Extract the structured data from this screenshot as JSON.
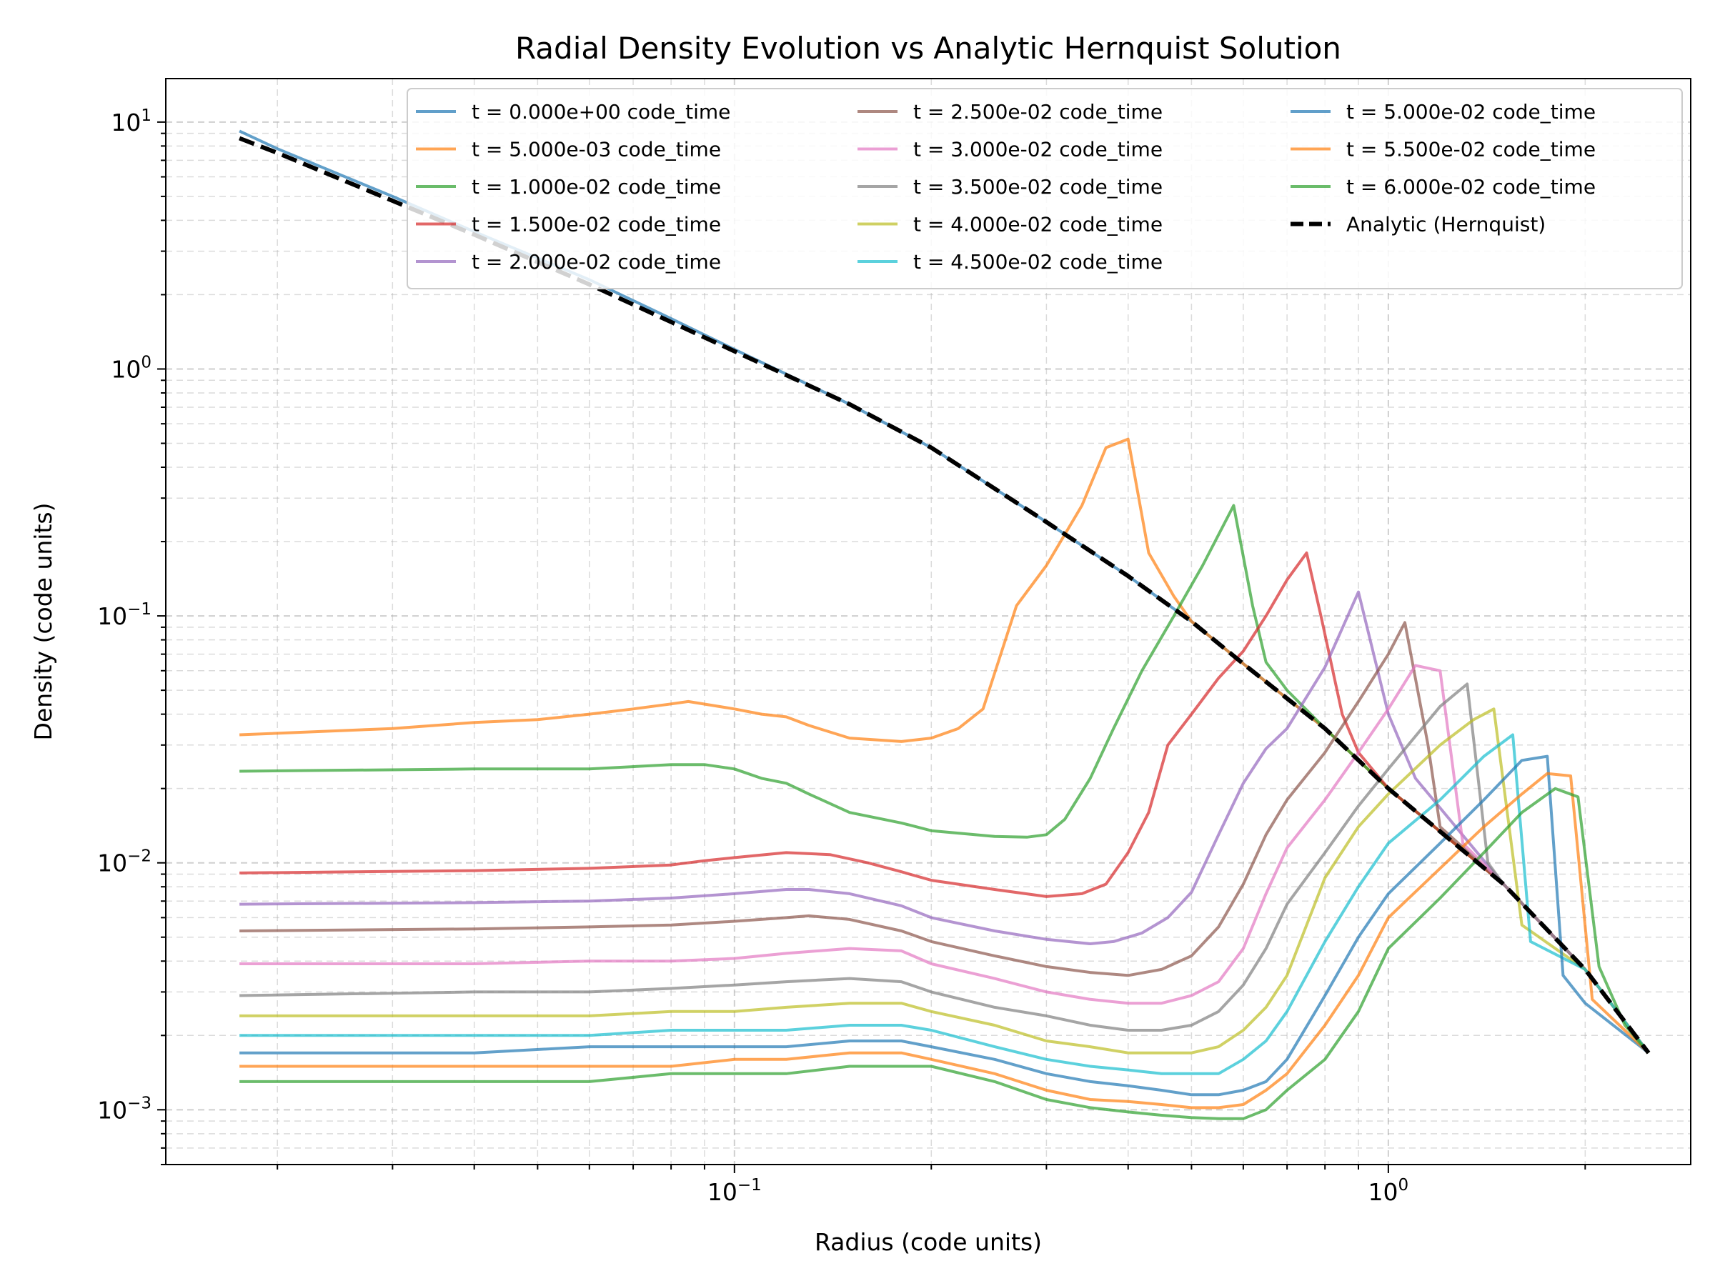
{
  "chart_data": {
    "type": "line",
    "title": "Radial Density Evolution vs Analytic Hernquist Solution",
    "xlabel": "Radius (code units)",
    "ylabel": "Density (code units)",
    "xscale": "log",
    "yscale": "log",
    "xlim": [
      0.0135,
      2.9
    ],
    "ylim": [
      0.0006,
      15
    ],
    "grid": "on (major and minor, dashed)",
    "legend_placement": "top-right",
    "legend_columns": 3,
    "x_ticks": [
      {
        "value": 0.1,
        "base": "10",
        "exp": "−1"
      },
      {
        "value": 1,
        "base": "10",
        "exp": "0"
      }
    ],
    "y_ticks": [
      {
        "value": 0.001,
        "base": "10",
        "exp": "−3"
      },
      {
        "value": 0.01,
        "base": "10",
        "exp": "−2"
      },
      {
        "value": 0.1,
        "base": "10",
        "exp": "−1"
      },
      {
        "value": 1,
        "base": "10",
        "exp": "0"
      },
      {
        "value": 10,
        "base": "10",
        "exp": "1"
      }
    ],
    "series": [
      {
        "name": "t = 0.000e+00 code_time",
        "color": "#1f77b4",
        "x": [
          0.0175,
          0.02,
          0.03,
          0.04,
          0.06,
          0.08,
          0.1,
          0.15,
          0.2,
          0.3,
          0.4,
          0.5,
          0.6,
          0.8,
          1.0,
          1.5,
          2.0,
          2.5
        ],
        "y": [
          9.2,
          7.8,
          5.0,
          3.6,
          2.3,
          1.6,
          1.2,
          0.72,
          0.48,
          0.24,
          0.145,
          0.095,
          0.064,
          0.035,
          0.02,
          0.0082,
          0.0037,
          0.0017
        ]
      },
      {
        "name": "t = 5.000e-03 code_time",
        "color": "#ff7f0e",
        "x": [
          0.0175,
          0.03,
          0.04,
          0.05,
          0.06,
          0.07,
          0.08,
          0.085,
          0.1,
          0.11,
          0.12,
          0.13,
          0.15,
          0.18,
          0.2,
          0.22,
          0.24,
          0.27,
          0.3,
          0.34,
          0.37,
          0.4,
          0.43,
          0.47,
          0.5,
          0.6,
          0.8,
          1.0,
          1.5,
          2.0,
          2.5
        ],
        "y": [
          0.033,
          0.035,
          0.037,
          0.038,
          0.04,
          0.042,
          0.044,
          0.045,
          0.042,
          0.04,
          0.039,
          0.036,
          0.032,
          0.031,
          0.032,
          0.035,
          0.042,
          0.11,
          0.16,
          0.28,
          0.48,
          0.52,
          0.18,
          0.12,
          0.095,
          0.064,
          0.035,
          0.02,
          0.0082,
          0.0037,
          0.0017
        ]
      },
      {
        "name": "t = 1.000e-02 code_time",
        "color": "#2ca02c",
        "x": [
          0.0175,
          0.04,
          0.06,
          0.08,
          0.09,
          0.1,
          0.11,
          0.12,
          0.13,
          0.15,
          0.18,
          0.2,
          0.25,
          0.28,
          0.3,
          0.32,
          0.35,
          0.38,
          0.42,
          0.47,
          0.52,
          0.58,
          0.62,
          0.65,
          0.7,
          0.8,
          1.0,
          1.5,
          2.0,
          2.5
        ],
        "y": [
          0.0235,
          0.024,
          0.024,
          0.025,
          0.025,
          0.024,
          0.022,
          0.021,
          0.019,
          0.016,
          0.0145,
          0.0135,
          0.0128,
          0.0127,
          0.013,
          0.015,
          0.022,
          0.035,
          0.06,
          0.1,
          0.16,
          0.28,
          0.11,
          0.065,
          0.05,
          0.035,
          0.02,
          0.0082,
          0.0037,
          0.0017
        ]
      },
      {
        "name": "t = 1.500e-02 code_time",
        "color": "#d62728",
        "x": [
          0.0175,
          0.04,
          0.06,
          0.08,
          0.09,
          0.1,
          0.12,
          0.14,
          0.16,
          0.18,
          0.2,
          0.25,
          0.3,
          0.34,
          0.37,
          0.4,
          0.43,
          0.46,
          0.5,
          0.55,
          0.6,
          0.65,
          0.7,
          0.75,
          0.79,
          0.85,
          0.9,
          1.0,
          1.5,
          2.0,
          2.5
        ],
        "y": [
          0.0091,
          0.0093,
          0.0095,
          0.0098,
          0.0102,
          0.0105,
          0.011,
          0.0108,
          0.01,
          0.0092,
          0.0085,
          0.0078,
          0.0073,
          0.0075,
          0.0082,
          0.011,
          0.016,
          0.03,
          0.04,
          0.056,
          0.072,
          0.1,
          0.14,
          0.18,
          0.098,
          0.04,
          0.028,
          0.02,
          0.0082,
          0.0037,
          0.0017
        ]
      },
      {
        "name": "t = 2.000e-02 code_time",
        "color": "#9467bd",
        "x": [
          0.0175,
          0.04,
          0.06,
          0.08,
          0.1,
          0.12,
          0.13,
          0.15,
          0.18,
          0.2,
          0.25,
          0.3,
          0.35,
          0.38,
          0.42,
          0.46,
          0.5,
          0.55,
          0.6,
          0.65,
          0.7,
          0.8,
          0.9,
          1.0,
          1.1,
          1.5,
          2.0,
          2.5
        ],
        "y": [
          0.0068,
          0.0069,
          0.007,
          0.0072,
          0.0075,
          0.0078,
          0.0078,
          0.0075,
          0.0067,
          0.006,
          0.0053,
          0.0049,
          0.0047,
          0.0048,
          0.0052,
          0.006,
          0.0076,
          0.013,
          0.021,
          0.029,
          0.035,
          0.062,
          0.125,
          0.04,
          0.022,
          0.0082,
          0.0037,
          0.0017
        ]
      },
      {
        "name": "t = 2.500e-02 code_time",
        "color": "#8c564b",
        "x": [
          0.0175,
          0.04,
          0.06,
          0.08,
          0.1,
          0.12,
          0.13,
          0.15,
          0.18,
          0.2,
          0.25,
          0.3,
          0.35,
          0.4,
          0.45,
          0.5,
          0.55,
          0.6,
          0.65,
          0.7,
          0.8,
          0.9,
          1.0,
          1.06,
          1.15,
          1.2,
          1.5,
          2.0,
          2.5
        ],
        "y": [
          0.0053,
          0.0054,
          0.0055,
          0.0056,
          0.0058,
          0.006,
          0.0061,
          0.0059,
          0.0053,
          0.0048,
          0.0042,
          0.0038,
          0.0036,
          0.0035,
          0.0037,
          0.0042,
          0.0055,
          0.0082,
          0.013,
          0.018,
          0.028,
          0.045,
          0.07,
          0.094,
          0.03,
          0.014,
          0.0082,
          0.0037,
          0.0017
        ]
      },
      {
        "name": "t = 3.000e-02 code_time",
        "color": "#e377c2",
        "x": [
          0.0175,
          0.04,
          0.06,
          0.08,
          0.1,
          0.12,
          0.15,
          0.18,
          0.2,
          0.25,
          0.3,
          0.35,
          0.4,
          0.45,
          0.5,
          0.55,
          0.6,
          0.65,
          0.7,
          0.8,
          0.9,
          1.0,
          1.1,
          1.2,
          1.3,
          1.5,
          2.0,
          2.5
        ],
        "y": [
          0.0039,
          0.0039,
          0.004,
          0.004,
          0.0041,
          0.0043,
          0.0045,
          0.0044,
          0.0039,
          0.0034,
          0.003,
          0.0028,
          0.0027,
          0.0027,
          0.0029,
          0.0033,
          0.0045,
          0.0075,
          0.0115,
          0.018,
          0.028,
          0.042,
          0.063,
          0.06,
          0.012,
          0.0082,
          0.0037,
          0.0017
        ]
      },
      {
        "name": "t = 3.500e-02 code_time",
        "color": "#7f7f7f",
        "x": [
          0.0175,
          0.04,
          0.06,
          0.08,
          0.1,
          0.12,
          0.15,
          0.18,
          0.2,
          0.25,
          0.3,
          0.35,
          0.4,
          0.45,
          0.5,
          0.55,
          0.6,
          0.65,
          0.7,
          0.8,
          0.9,
          1.0,
          1.2,
          1.32,
          1.42,
          1.5,
          2.0,
          2.5
        ],
        "y": [
          0.0029,
          0.003,
          0.003,
          0.0031,
          0.0032,
          0.0033,
          0.0034,
          0.0033,
          0.003,
          0.0026,
          0.0024,
          0.0022,
          0.0021,
          0.0021,
          0.0022,
          0.0025,
          0.0032,
          0.0045,
          0.0068,
          0.011,
          0.017,
          0.024,
          0.043,
          0.053,
          0.01,
          0.0082,
          0.0037,
          0.0017
        ]
      },
      {
        "name": "t = 4.000e-02 code_time",
        "color": "#bcbd22",
        "x": [
          0.0175,
          0.04,
          0.06,
          0.08,
          0.1,
          0.12,
          0.15,
          0.18,
          0.2,
          0.25,
          0.3,
          0.35,
          0.4,
          0.45,
          0.5,
          0.55,
          0.6,
          0.65,
          0.7,
          0.8,
          0.9,
          1.0,
          1.2,
          1.35,
          1.45,
          1.6,
          2.0,
          2.5
        ],
        "y": [
          0.0024,
          0.0024,
          0.0024,
          0.0025,
          0.0025,
          0.0026,
          0.0027,
          0.0027,
          0.0025,
          0.0022,
          0.0019,
          0.0018,
          0.0017,
          0.0017,
          0.0017,
          0.0018,
          0.0021,
          0.0026,
          0.0035,
          0.0087,
          0.014,
          0.019,
          0.03,
          0.038,
          0.042,
          0.0056,
          0.0037,
          0.0017
        ]
      },
      {
        "name": "t = 4.500e-02 code_time",
        "color": "#17becf",
        "x": [
          0.0175,
          0.04,
          0.06,
          0.08,
          0.1,
          0.12,
          0.15,
          0.18,
          0.2,
          0.25,
          0.3,
          0.35,
          0.4,
          0.45,
          0.5,
          0.55,
          0.6,
          0.65,
          0.7,
          0.8,
          0.9,
          1.0,
          1.2,
          1.4,
          1.55,
          1.65,
          2.0,
          2.5
        ],
        "y": [
          0.002,
          0.002,
          0.002,
          0.0021,
          0.0021,
          0.0021,
          0.0022,
          0.0022,
          0.0021,
          0.0018,
          0.0016,
          0.0015,
          0.00145,
          0.0014,
          0.0014,
          0.0014,
          0.0016,
          0.0019,
          0.0025,
          0.0048,
          0.008,
          0.012,
          0.018,
          0.027,
          0.033,
          0.0048,
          0.0037,
          0.0017
        ]
      },
      {
        "name": "t = 5.000e-02 code_time",
        "color": "#1f77b4",
        "x": [
          0.0175,
          0.04,
          0.06,
          0.08,
          0.1,
          0.12,
          0.15,
          0.18,
          0.2,
          0.25,
          0.3,
          0.35,
          0.4,
          0.45,
          0.5,
          0.55,
          0.6,
          0.65,
          0.7,
          0.8,
          0.9,
          1.0,
          1.2,
          1.4,
          1.6,
          1.75,
          1.85,
          2.0,
          2.5
        ],
        "y": [
          0.0017,
          0.0017,
          0.0018,
          0.0018,
          0.0018,
          0.0018,
          0.0019,
          0.0019,
          0.0018,
          0.0016,
          0.0014,
          0.0013,
          0.00125,
          0.0012,
          0.00115,
          0.00115,
          0.0012,
          0.0013,
          0.0016,
          0.0029,
          0.005,
          0.0075,
          0.012,
          0.018,
          0.026,
          0.027,
          0.0035,
          0.0027,
          0.0017
        ]
      },
      {
        "name": "t = 5.500e-02 code_time",
        "color": "#ff7f0e",
        "x": [
          0.0175,
          0.04,
          0.06,
          0.08,
          0.1,
          0.12,
          0.15,
          0.18,
          0.2,
          0.25,
          0.3,
          0.35,
          0.4,
          0.45,
          0.5,
          0.55,
          0.6,
          0.65,
          0.7,
          0.8,
          0.9,
          1.0,
          1.2,
          1.4,
          1.6,
          1.75,
          1.9,
          2.05,
          2.5
        ],
        "y": [
          0.0015,
          0.0015,
          0.0015,
          0.0015,
          0.0016,
          0.0016,
          0.0017,
          0.0017,
          0.0016,
          0.0014,
          0.0012,
          0.0011,
          0.00108,
          0.00105,
          0.00102,
          0.00102,
          0.00105,
          0.0012,
          0.0014,
          0.0022,
          0.0035,
          0.006,
          0.0095,
          0.014,
          0.019,
          0.023,
          0.0225,
          0.0028,
          0.0017
        ]
      },
      {
        "name": "t = 6.000e-02 code_time",
        "color": "#2ca02c",
        "x": [
          0.0175,
          0.04,
          0.06,
          0.08,
          0.1,
          0.12,
          0.15,
          0.18,
          0.2,
          0.25,
          0.3,
          0.35,
          0.4,
          0.45,
          0.5,
          0.55,
          0.6,
          0.65,
          0.7,
          0.8,
          0.9,
          1.0,
          1.2,
          1.4,
          1.6,
          1.8,
          1.95,
          2.1,
          2.3,
          2.5
        ],
        "y": [
          0.0013,
          0.0013,
          0.0013,
          0.0014,
          0.0014,
          0.0014,
          0.0015,
          0.0015,
          0.0015,
          0.0013,
          0.0011,
          0.00102,
          0.00098,
          0.00095,
          0.00093,
          0.00092,
          0.00092,
          0.001,
          0.0012,
          0.0016,
          0.0025,
          0.0045,
          0.0072,
          0.011,
          0.016,
          0.02,
          0.0185,
          0.0038,
          0.0022,
          0.0017
        ]
      },
      {
        "name": "Analytic (Hernquist)",
        "color": "#000000",
        "dashed": true,
        "x": [
          0.0175,
          0.02,
          0.03,
          0.04,
          0.06,
          0.08,
          0.1,
          0.15,
          0.2,
          0.3,
          0.4,
          0.5,
          0.6,
          0.8,
          1.0,
          1.5,
          2.0,
          2.5
        ],
        "y": [
          8.6,
          7.5,
          4.8,
          3.5,
          2.2,
          1.55,
          1.18,
          0.72,
          0.48,
          0.24,
          0.145,
          0.095,
          0.064,
          0.035,
          0.02,
          0.0082,
          0.0037,
          0.0017
        ]
      }
    ]
  }
}
